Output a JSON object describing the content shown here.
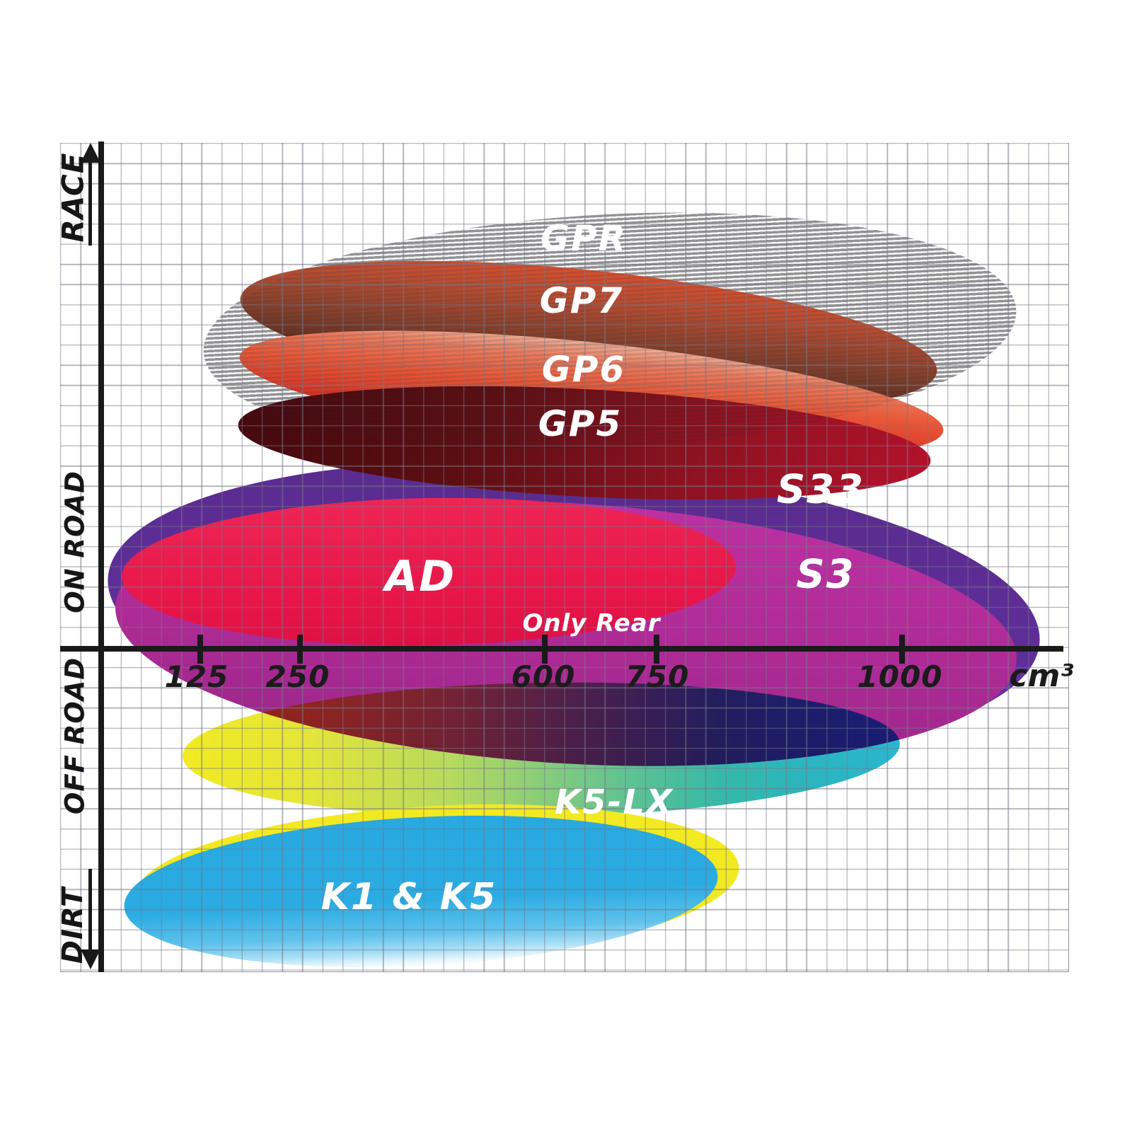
{
  "y_axis_bands": [
    {
      "label": "RACE",
      "arrow": "up"
    },
    {
      "label": "ON ROAD",
      "arrow": ""
    },
    {
      "label": "OFF ROAD",
      "arrow": ""
    },
    {
      "label": "DIRT",
      "arrow": "down"
    }
  ],
  "x_axis": {
    "ticks": [
      "125",
      "250",
      "600",
      "750",
      "1000"
    ],
    "unit": "cm³"
  },
  "compounds": [
    {
      "id": "gpr",
      "label": "GPR",
      "band": "RACE",
      "color": "#a4a4a6",
      "pattern": "horizontal-stripes"
    },
    {
      "id": "gp7",
      "label": "GP7",
      "band": "RACE",
      "color": "#84402c"
    },
    {
      "id": "gp6",
      "label": "GP6",
      "band": "RACE",
      "color": "#e85737"
    },
    {
      "id": "gp5",
      "label": "GP5",
      "band": "RACE / ON ROAD",
      "color": "#8c1220"
    },
    {
      "id": "s33",
      "label": "S33",
      "band": "ON ROAD",
      "color": "#5e2e99"
    },
    {
      "id": "s3",
      "label": "S3",
      "band": "ON ROAD",
      "color": "#ad2a95"
    },
    {
      "id": "ad",
      "label": "AD",
      "band": "ON ROAD",
      "color": "#e71549",
      "note": "Only Rear"
    },
    {
      "id": "k5lx",
      "label": "K5-LX",
      "band": "OFF ROAD",
      "color": "#2ab5c0",
      "color2": "#f2ea22"
    },
    {
      "id": "k1k5",
      "label": "K1 & K5",
      "band": "DIRT",
      "color": "#28a9e0",
      "outline": "#f3e921"
    }
  ],
  "annotations": {
    "only_rear": "Only Rear"
  },
  "colors": {
    "axis": "#1a1a1a",
    "grid_line": "#8a8a96",
    "label_text": "#ffffff",
    "axis_text": "#1b1b1b"
  },
  "chart_data": {
    "type": "area",
    "title": "",
    "xlabel": "cm³",
    "ylabel": "",
    "x_ticks": [
      125,
      250,
      600,
      750,
      1000
    ],
    "y_bands": [
      "DIRT",
      "OFF ROAD",
      "ON ROAD",
      "RACE"
    ],
    "grid": true,
    "legend_position": "none",
    "series": [
      {
        "name": "GPR",
        "band": "RACE",
        "cc_range": [
          125,
          1120
        ]
      },
      {
        "name": "GP7",
        "band": "RACE",
        "cc_range": [
          170,
          1040
        ]
      },
      {
        "name": "GP6",
        "band": "RACE",
        "cc_range": [
          170,
          1045
        ]
      },
      {
        "name": "GP5",
        "band": "RACE / ON ROAD",
        "cc_range": [
          170,
          1030
        ]
      },
      {
        "name": "S33",
        "band": "ON ROAD",
        "cc_range": [
          50,
          1140
        ]
      },
      {
        "name": "S3",
        "band": "ON ROAD",
        "cc_range": [
          60,
          1120
        ]
      },
      {
        "name": "AD",
        "band": "ON ROAD",
        "cc_range": [
          50,
          830
        ],
        "note": "Only Rear"
      },
      {
        "name": "K5-LX",
        "band": "OFF ROAD",
        "cc_range": [
          105,
          1000
        ]
      },
      {
        "name": "K1 & K5",
        "band": "DIRT",
        "cc_range": [
          50,
          810
        ]
      }
    ]
  }
}
